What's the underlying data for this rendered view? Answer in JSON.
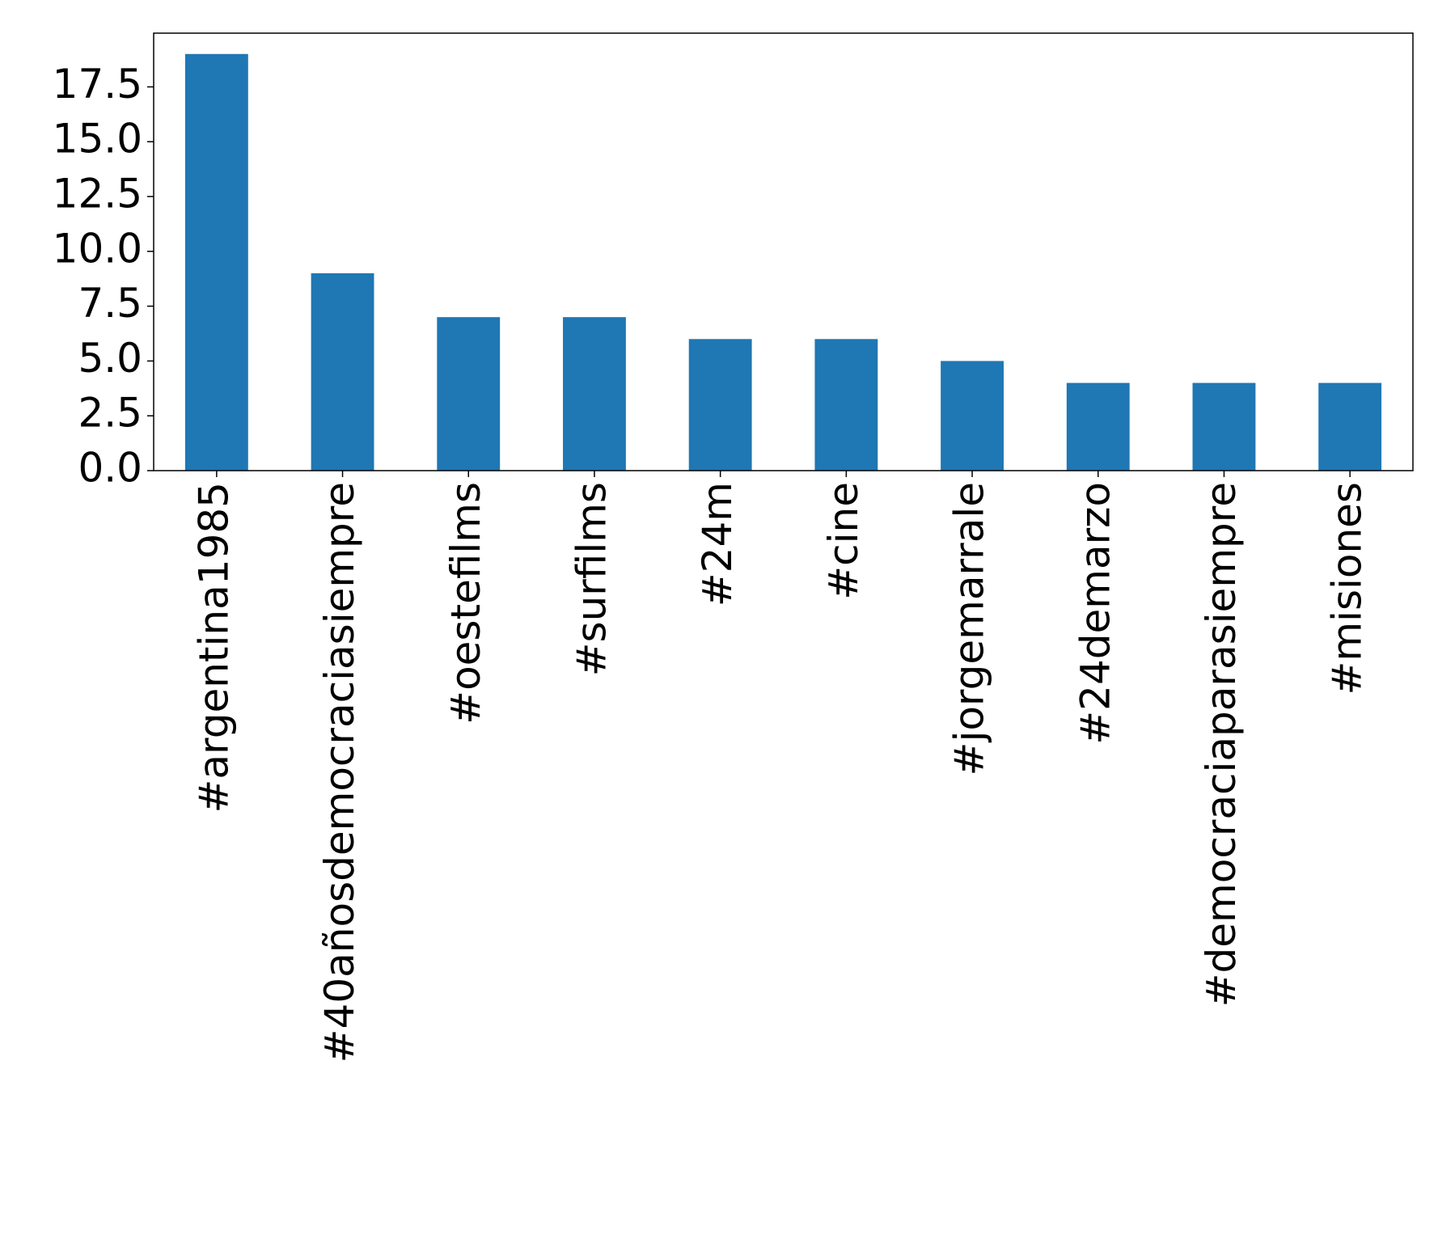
{
  "chart_data": {
    "type": "bar",
    "categories": [
      "#argentina1985",
      "#40añosdemocraciasiempre",
      "#oestefilms",
      "#surfilms",
      "#24m",
      "#cine",
      "#jorgemarrale",
      "#24demarzo",
      "#democraciaparasiempre",
      "#misiones"
    ],
    "values": [
      19,
      9,
      7,
      7,
      6,
      6,
      5,
      4,
      4,
      4
    ],
    "color": "#1f77b4",
    "ylim": [
      0,
      19.95
    ],
    "yticks": [
      {
        "value": 0,
        "label": "0.0"
      },
      2.5,
      {
        "value": 5,
        "label": "5.0"
      },
      7.5,
      {
        "value": 10,
        "label": "10.0"
      },
      12.5,
      {
        "value": 15,
        "label": "15.0"
      },
      17.5
    ],
    "grid": false
  }
}
